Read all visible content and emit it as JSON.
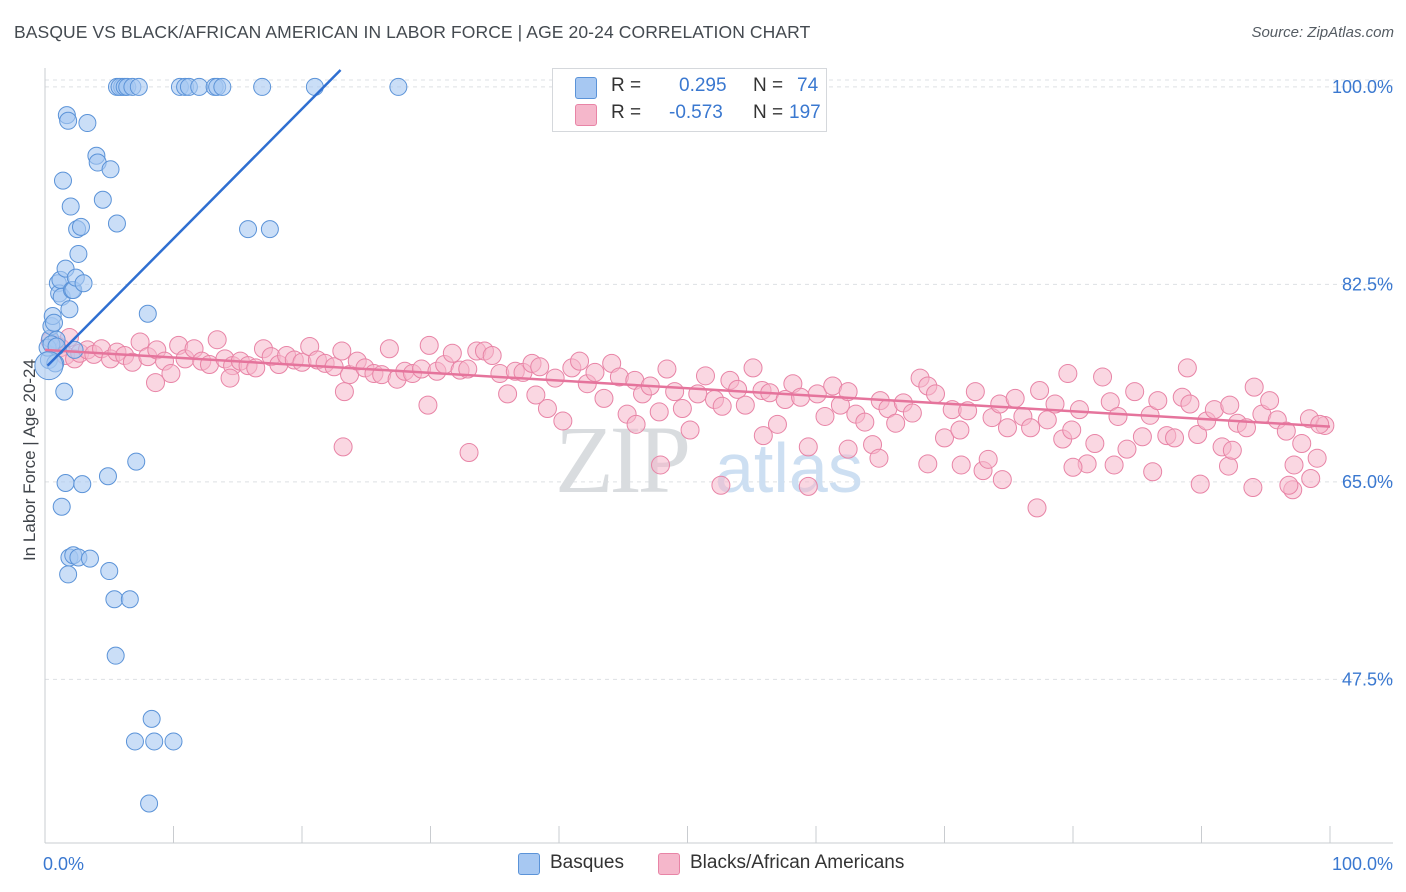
{
  "title": "BASQUE VS BLACK/AFRICAN AMERICAN IN LABOR FORCE | AGE 20-24 CORRELATION CHART",
  "source": "Source: ZipAtlas.com",
  "watermark": {
    "zip": "ZIP",
    "atlas": "atlas"
  },
  "legend_stats": [
    {
      "r_label": "R =",
      "r_value": "0.295",
      "n_label": "N =",
      "n_value": "74",
      "color": "#a7c8f2"
    },
    {
      "r_label": "R =",
      "r_value": "-0.573",
      "n_label": "N =",
      "n_value": "197",
      "color": "#f5b7cb"
    }
  ],
  "colors": {
    "blue_fill": "#a7c8f2",
    "blue_stroke": "#5b93d8",
    "blue_line": "#2f6fd1",
    "pink_fill": "#f5b7cb",
    "pink_stroke": "#e884a6",
    "pink_line": "#e5749c",
    "grid": "#dde0e4",
    "tick_label": "#3a78d0"
  },
  "chart_data": {
    "type": "scatter",
    "title": "BASQUE VS BLACK/AFRICAN AMERICAN IN LABOR FORCE | AGE 20-24 CORRELATION CHART",
    "xlabel": "",
    "ylabel": "In Labor Force | Age 20-24",
    "xlim": [
      0,
      100
    ],
    "ylim": [
      33,
      101.5
    ],
    "x_tick_labels": [
      "0.0%",
      "100.0%"
    ],
    "y_ticks": [
      47.5,
      65.0,
      82.5,
      100.0
    ],
    "y_tick_labels": [
      "47.5%",
      "65.0%",
      "82.5%",
      "100.0%"
    ],
    "grid": true,
    "legend_position": "bottom",
    "series": [
      {
        "name": "Basques",
        "trend": {
          "x": [
            0.2,
            23.0
          ],
          "y": [
            75.3,
            101.5
          ]
        },
        "points": [
          [
            0.3,
            75.8
          ],
          [
            0.4,
            77.7
          ],
          [
            0.5,
            78.8
          ],
          [
            0.6,
            79.7
          ],
          [
            0.7,
            79.1
          ],
          [
            0.8,
            75.5
          ],
          [
            0.9,
            77.6
          ],
          [
            1.0,
            82.6
          ],
          [
            1.1,
            81.7
          ],
          [
            1.2,
            82.9
          ],
          [
            1.3,
            81.4
          ],
          [
            1.4,
            91.7
          ],
          [
            1.5,
            73.0
          ],
          [
            1.6,
            64.9
          ],
          [
            1.6,
            83.9
          ],
          [
            1.7,
            97.5
          ],
          [
            1.8,
            97.0
          ],
          [
            1.9,
            80.3
          ],
          [
            2.0,
            89.4
          ],
          [
            2.1,
            82.0
          ],
          [
            2.2,
            82.0
          ],
          [
            2.3,
            76.7
          ],
          [
            2.4,
            83.1
          ],
          [
            2.5,
            87.4
          ],
          [
            2.6,
            85.2
          ],
          [
            2.8,
            87.6
          ],
          [
            3.0,
            82.6
          ],
          [
            3.3,
            96.8
          ],
          [
            4.0,
            93.9
          ],
          [
            4.1,
            93.3
          ],
          [
            4.5,
            90.0
          ],
          [
            4.9,
            65.5
          ],
          [
            5.0,
            57.1
          ],
          [
            5.1,
            92.7
          ],
          [
            5.4,
            54.6
          ],
          [
            5.5,
            49.6
          ],
          [
            5.6,
            87.9
          ],
          [
            5.6,
            100.0
          ],
          [
            6.0,
            100.0
          ],
          [
            5.8,
            100.0
          ],
          [
            6.2,
            100.0
          ],
          [
            6.4,
            100.0
          ],
          [
            6.6,
            54.6
          ],
          [
            6.8,
            100.0
          ],
          [
            7.0,
            42.0
          ],
          [
            7.1,
            66.8
          ],
          [
            7.3,
            100.0
          ],
          [
            8.0,
            79.9
          ],
          [
            8.3,
            44.0
          ],
          [
            8.1,
            36.5
          ],
          [
            8.5,
            42.0
          ],
          [
            10.0,
            42.0
          ],
          [
            10.5,
            100.0
          ],
          [
            10.9,
            100.0
          ],
          [
            11.2,
            100.0
          ],
          [
            12.0,
            100.0
          ],
          [
            13.2,
            100.0
          ],
          [
            13.4,
            100.0
          ],
          [
            13.8,
            100.0
          ],
          [
            15.8,
            87.4
          ],
          [
            17.5,
            87.4
          ],
          [
            16.9,
            100.0
          ],
          [
            21.0,
            100.0
          ],
          [
            27.5,
            100.0
          ],
          [
            0.2,
            76.9
          ],
          [
            0.5,
            77.2
          ],
          [
            1.3,
            62.8
          ],
          [
            1.9,
            58.3
          ],
          [
            2.2,
            58.5
          ],
          [
            2.6,
            58.3
          ],
          [
            3.5,
            58.2
          ],
          [
            2.9,
            64.8
          ],
          [
            1.8,
            56.8
          ],
          [
            0.9,
            77.0
          ]
        ]
      },
      {
        "name": "Blacks/African Americans",
        "trend": {
          "x": [
            0.0,
            100.0
          ],
          "y": [
            76.7,
            69.9
          ]
        },
        "points": [
          [
            0.4,
            77.5
          ],
          [
            0.9,
            77.1
          ],
          [
            1.2,
            76.9
          ],
          [
            1.6,
            76.2
          ],
          [
            1.9,
            77.8
          ],
          [
            2.3,
            75.9
          ],
          [
            2.7,
            76.4
          ],
          [
            3.3,
            76.7
          ],
          [
            3.8,
            76.3
          ],
          [
            4.4,
            76.8
          ],
          [
            5.1,
            75.9
          ],
          [
            5.6,
            76.5
          ],
          [
            6.2,
            76.2
          ],
          [
            6.8,
            75.6
          ],
          [
            7.4,
            77.4
          ],
          [
            8.0,
            76.1
          ],
          [
            8.7,
            76.7
          ],
          [
            9.3,
            75.7
          ],
          [
            9.8,
            74.6
          ],
          [
            10.4,
            77.1
          ],
          [
            10.9,
            75.9
          ],
          [
            11.6,
            76.8
          ],
          [
            12.2,
            75.7
          ],
          [
            12.8,
            75.4
          ],
          [
            13.4,
            77.6
          ],
          [
            14.0,
            75.9
          ],
          [
            14.6,
            75.3
          ],
          [
            15.2,
            75.7
          ],
          [
            15.8,
            75.3
          ],
          [
            16.4,
            75.1
          ],
          [
            17.0,
            76.8
          ],
          [
            17.6,
            76.1
          ],
          [
            18.2,
            75.4
          ],
          [
            18.8,
            76.2
          ],
          [
            19.4,
            75.8
          ],
          [
            20.0,
            75.6
          ],
          [
            20.6,
            77.0
          ],
          [
            21.2,
            75.8
          ],
          [
            21.8,
            75.5
          ],
          [
            22.5,
            75.2
          ],
          [
            23.1,
            76.6
          ],
          [
            23.7,
            74.5
          ],
          [
            24.3,
            75.7
          ],
          [
            24.9,
            75.1
          ],
          [
            25.6,
            74.6
          ],
          [
            26.2,
            74.5
          ],
          [
            26.8,
            76.8
          ],
          [
            27.4,
            74.1
          ],
          [
            28.0,
            74.8
          ],
          [
            28.6,
            74.6
          ],
          [
            29.3,
            75.0
          ],
          [
            29.9,
            77.1
          ],
          [
            30.5,
            74.8
          ],
          [
            31.1,
            75.4
          ],
          [
            31.7,
            76.4
          ],
          [
            32.3,
            74.9
          ],
          [
            32.9,
            75.0
          ],
          [
            33.6,
            76.6
          ],
          [
            34.2,
            76.6
          ],
          [
            34.8,
            76.2
          ],
          [
            35.4,
            74.6
          ],
          [
            36.0,
            72.8
          ],
          [
            36.6,
            74.8
          ],
          [
            37.2,
            74.7
          ],
          [
            37.9,
            75.5
          ],
          [
            38.5,
            75.2
          ],
          [
            39.1,
            71.5
          ],
          [
            39.7,
            74.2
          ],
          [
            40.3,
            70.4
          ],
          [
            41.0,
            75.1
          ],
          [
            41.6,
            75.7
          ],
          [
            42.2,
            73.7
          ],
          [
            42.8,
            74.7
          ],
          [
            43.5,
            72.4
          ],
          [
            44.1,
            75.5
          ],
          [
            44.7,
            74.3
          ],
          [
            45.3,
            71.0
          ],
          [
            45.9,
            74.0
          ],
          [
            46.5,
            72.8
          ],
          [
            47.1,
            73.5
          ],
          [
            47.8,
            71.2
          ],
          [
            48.4,
            75.0
          ],
          [
            49.0,
            73.0
          ],
          [
            49.6,
            71.5
          ],
          [
            50.2,
            69.6
          ],
          [
            50.8,
            72.8
          ],
          [
            51.4,
            74.4
          ],
          [
            52.1,
            72.3
          ],
          [
            52.7,
            71.7
          ],
          [
            53.3,
            74.0
          ],
          [
            53.9,
            73.2
          ],
          [
            54.5,
            71.8
          ],
          [
            55.1,
            75.1
          ],
          [
            55.8,
            73.1
          ],
          [
            56.4,
            72.9
          ],
          [
            57.0,
            70.1
          ],
          [
            57.6,
            72.3
          ],
          [
            58.2,
            73.7
          ],
          [
            58.8,
            72.5
          ],
          [
            59.4,
            68.1
          ],
          [
            60.1,
            72.8
          ],
          [
            60.7,
            70.8
          ],
          [
            61.3,
            73.5
          ],
          [
            61.9,
            71.8
          ],
          [
            62.5,
            73.0
          ],
          [
            63.1,
            71.0
          ],
          [
            63.8,
            70.3
          ],
          [
            64.4,
            68.3
          ],
          [
            65.0,
            72.2
          ],
          [
            65.6,
            71.5
          ],
          [
            66.2,
            70.2
          ],
          [
            66.8,
            72.0
          ],
          [
            67.5,
            71.1
          ],
          [
            68.1,
            74.2
          ],
          [
            68.7,
            73.5
          ],
          [
            69.3,
            72.8
          ],
          [
            70.0,
            68.9
          ],
          [
            70.6,
            71.4
          ],
          [
            71.2,
            69.6
          ],
          [
            71.8,
            71.3
          ],
          [
            72.4,
            73.0
          ],
          [
            73.0,
            66.0
          ],
          [
            73.7,
            70.7
          ],
          [
            74.3,
            71.9
          ],
          [
            74.9,
            69.8
          ],
          [
            75.5,
            72.4
          ],
          [
            76.1,
            70.8
          ],
          [
            76.7,
            69.8
          ],
          [
            77.4,
            73.1
          ],
          [
            78.0,
            70.5
          ],
          [
            78.6,
            71.9
          ],
          [
            79.2,
            68.8
          ],
          [
            79.9,
            69.6
          ],
          [
            80.5,
            71.4
          ],
          [
            81.1,
            66.6
          ],
          [
            81.7,
            68.4
          ],
          [
            82.3,
            74.3
          ],
          [
            82.9,
            72.1
          ],
          [
            83.5,
            70.8
          ],
          [
            84.2,
            67.9
          ],
          [
            84.8,
            73.0
          ],
          [
            85.4,
            69.0
          ],
          [
            86.0,
            70.9
          ],
          [
            86.6,
            72.2
          ],
          [
            87.3,
            69.1
          ],
          [
            87.9,
            68.9
          ],
          [
            88.5,
            72.5
          ],
          [
            89.1,
            71.9
          ],
          [
            89.7,
            69.2
          ],
          [
            90.4,
            70.4
          ],
          [
            91.0,
            71.4
          ],
          [
            91.6,
            68.1
          ],
          [
            92.2,
            71.8
          ],
          [
            92.8,
            70.2
          ],
          [
            93.5,
            69.8
          ],
          [
            94.1,
            73.4
          ],
          [
            94.7,
            71.0
          ],
          [
            95.3,
            72.2
          ],
          [
            95.9,
            70.5
          ],
          [
            96.6,
            69.5
          ],
          [
            97.2,
            66.5
          ],
          [
            97.8,
            68.4
          ],
          [
            98.4,
            70.6
          ],
          [
            99.0,
            67.1
          ],
          [
            99.6,
            70.0
          ],
          [
            14.4,
            74.2
          ],
          [
            8.6,
            73.8
          ],
          [
            23.3,
            73.0
          ],
          [
            29.8,
            71.8
          ],
          [
            38.2,
            72.7
          ],
          [
            46.0,
            70.1
          ],
          [
            55.9,
            69.1
          ],
          [
            62.5,
            67.9
          ],
          [
            68.7,
            66.6
          ],
          [
            74.5,
            65.2
          ],
          [
            80.0,
            66.3
          ],
          [
            86.2,
            65.9
          ],
          [
            92.1,
            66.4
          ],
          [
            97.1,
            64.3
          ],
          [
            77.2,
            62.7
          ],
          [
            89.9,
            64.8
          ],
          [
            94.0,
            64.5
          ],
          [
            71.3,
            66.5
          ],
          [
            52.6,
            64.7
          ],
          [
            59.4,
            64.6
          ],
          [
            23.2,
            68.1
          ],
          [
            33.0,
            67.6
          ],
          [
            47.9,
            66.5
          ],
          [
            64.9,
            67.1
          ],
          [
            73.4,
            67.0
          ],
          [
            83.2,
            66.5
          ],
          [
            96.8,
            64.7
          ],
          [
            98.5,
            65.3
          ],
          [
            99.2,
            70.1
          ],
          [
            92.4,
            67.8
          ],
          [
            88.9,
            75.1
          ],
          [
            79.6,
            74.6
          ]
        ]
      }
    ]
  },
  "bottom_legend": [
    {
      "label": "Basques",
      "color": "#a7c8f2"
    },
    {
      "label": "Blacks/African Americans",
      "color": "#f5b7cb"
    }
  ]
}
